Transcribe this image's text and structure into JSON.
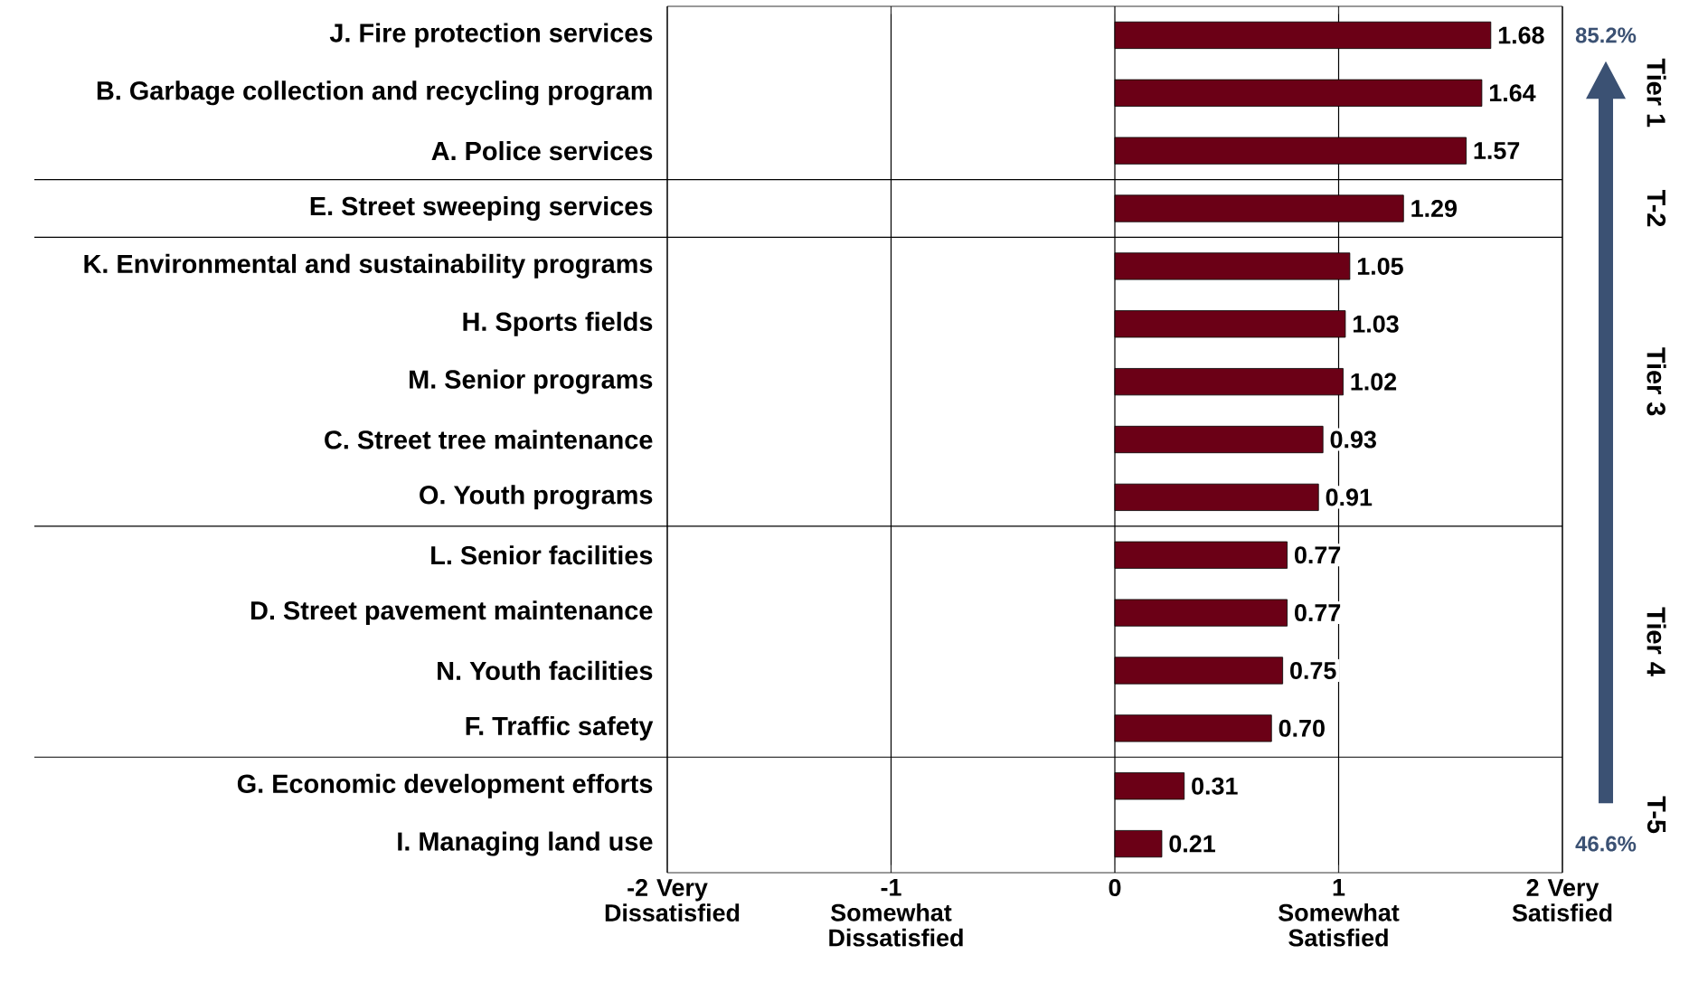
{
  "chart_data": {
    "type": "bar",
    "orientation": "horizontal",
    "categories": [
      "J. Fire protection services",
      "B. Garbage collection and recycling program",
      "A. Police services",
      "E. Street sweeping services",
      "K. Environmental and sustainability programs",
      "H. Sports fields",
      "M. Senior programs",
      "C. Street tree maintenance",
      "O. Youth programs",
      "L. Senior facilities",
      "D. Street pavement maintenance",
      "N. Youth facilities",
      "F. Traffic safety",
      "G. Economic development efforts",
      "I. Managing land use"
    ],
    "values": [
      1.68,
      1.64,
      1.57,
      1.29,
      1.05,
      1.03,
      1.02,
      0.93,
      0.91,
      0.77,
      0.77,
      0.75,
      0.7,
      0.31,
      0.21
    ],
    "value_labels": [
      "1.68",
      "1.64",
      "1.57",
      "1.29",
      "1.05",
      "1.03",
      "1.02",
      "0.93",
      "0.91",
      "0.77",
      "0.77",
      "0.75",
      "0.70",
      "0.31",
      "0.21"
    ],
    "color": "#6b0016",
    "xlim": [
      -2,
      2
    ],
    "xticks": [
      {
        "value": -2,
        "label": "-2 Very Dissatisfied"
      },
      {
        "value": -1,
        "label": "-1 Somewhat Dissatisfied"
      },
      0,
      {
        "value": 1,
        "label": "1 Somewhat Satisfied"
      },
      {
        "value": 2,
        "label": "2 Very Satisfied"
      }
    ],
    "grid": "x",
    "annotations": [
      "Tier 1",
      "T-2",
      "Tier 3",
      "Tier 4",
      "T-5",
      "85.2%",
      "46.6%"
    ]
  }
}
